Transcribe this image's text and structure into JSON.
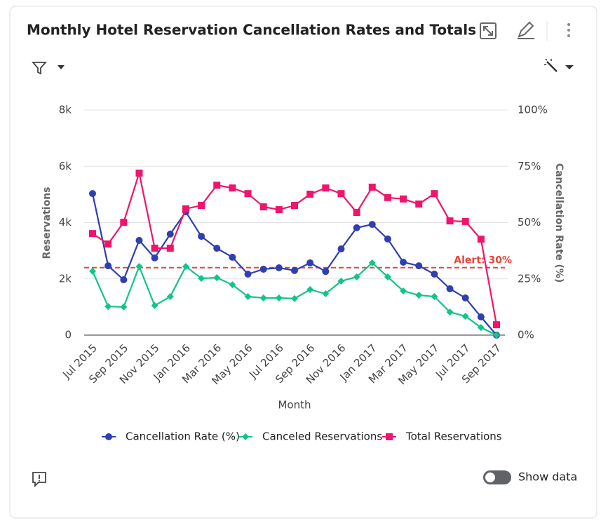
{
  "chart_data": {
    "type": "line",
    "title": "Monthly Hotel Reservation Cancellation Rates and Totals",
    "x_label": "Month",
    "y_label": "Reservations",
    "y2_label": "Cancellation Rate (%)",
    "categories": [
      "Jul 2015",
      null,
      "Sep 2015",
      null,
      "Nov 2015",
      null,
      "Jan 2016",
      null,
      "Mar 2016",
      null,
      "May 2016",
      null,
      "Jul 2016",
      null,
      "Sep 2016",
      null,
      "Nov 2016",
      null,
      "Jan 2017",
      null,
      "Mar 2017",
      null,
      "May 2017",
      null,
      "Jul 2017",
      null,
      "Sep 2017"
    ],
    "series": [
      {
        "name": "Cancellation Rate (%)",
        "color": "#2f3fb0",
        "marker": "circle",
        "axis": "y2",
        "values": [
          62.9,
          30.8,
          24.6,
          42.1,
          34.3,
          44.9,
          54.8,
          43.9,
          38.6,
          34.6,
          27.1,
          29.3,
          29.9,
          28.7,
          32.1,
          28.3,
          38.3,
          47.7,
          49.2,
          42.7,
          32.4,
          30.8,
          27.1,
          20.6,
          16.5,
          8.1,
          0
        ]
      },
      {
        "name": "Canceled Reservations",
        "color": "#11c58a",
        "marker": "diamond",
        "values": [
          2270,
          1020,
          1000,
          2440,
          1050,
          1370,
          2440,
          2020,
          2040,
          1790,
          1370,
          1320,
          1320,
          1300,
          1620,
          1470,
          1920,
          2070,
          2570,
          2070,
          1570,
          1420,
          1370,
          820,
          670,
          270,
          0
        ]
      },
      {
        "name": "Total Reservations",
        "color": "#f0146c",
        "marker": "square",
        "values": [
          3610,
          3240,
          4010,
          5760,
          3090,
          3090,
          4490,
          4610,
          5330,
          5230,
          5030,
          4560,
          4460,
          4610,
          5010,
          5230,
          5030,
          4360,
          5260,
          4890,
          4840,
          4660,
          5030,
          4060,
          4040,
          3410,
          370
        ]
      }
    ],
    "ylim": [
      0,
      8000
    ],
    "yticks": [
      0,
      {
        "value": 2000,
        "label": "2k"
      },
      {
        "value": 4000,
        "label": "4k"
      },
      {
        "value": 6000,
        "label": "6k"
      },
      {
        "value": 8000,
        "label": "8k"
      }
    ],
    "y2lim": [
      0,
      100
    ],
    "y2ticks": [
      {
        "value": 0,
        "label": "0%"
      },
      {
        "value": 25,
        "label": "25%"
      },
      {
        "value": 50,
        "label": "50%"
      },
      {
        "value": 75,
        "label": "75%"
      },
      {
        "value": 100,
        "label": "100%"
      }
    ],
    "grid": true,
    "legend": "bottom",
    "threshold": {
      "value": 30,
      "label": "Alert: 30%",
      "axis": "y2",
      "color": "#e8443a"
    }
  },
  "show_data_label": "Show data"
}
